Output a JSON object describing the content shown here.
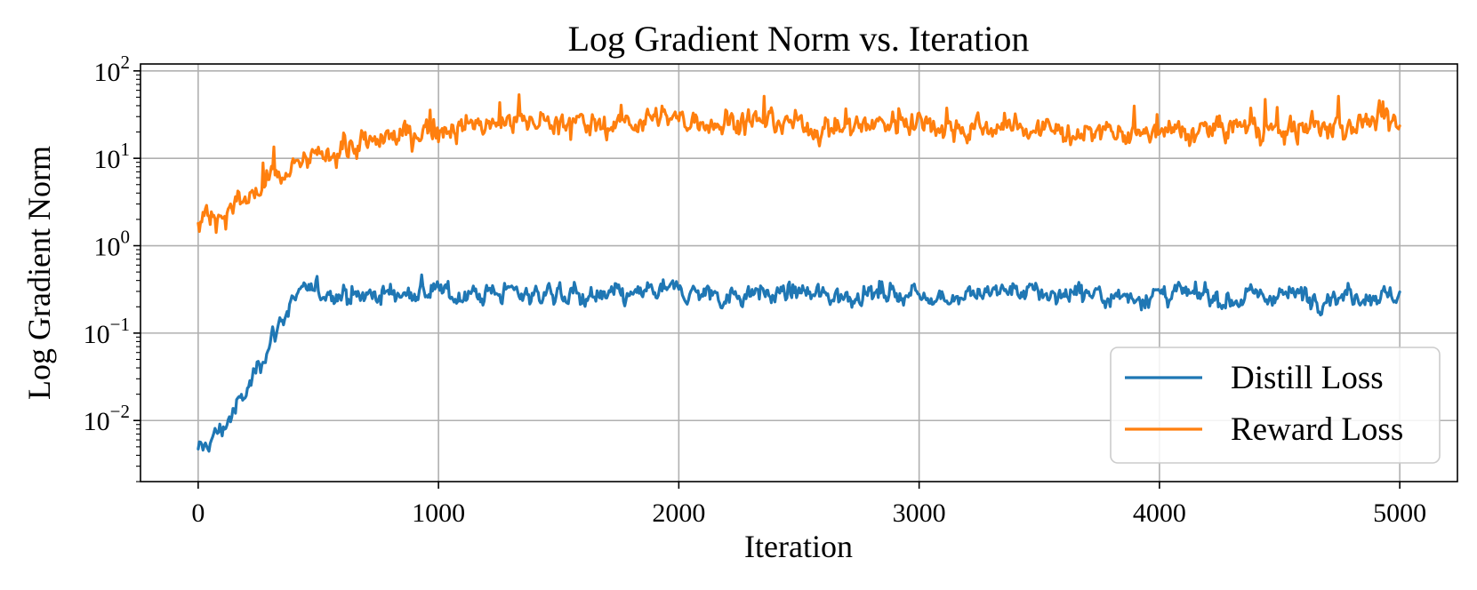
{
  "chart_data": {
    "type": "line",
    "title": "Log Gradient Norm vs. Iteration",
    "xlabel": "Iteration",
    "ylabel": "Log Gradient Norm",
    "xlim": [
      -240,
      5240
    ],
    "ylim": [
      0.002,
      120
    ],
    "yscale": "log",
    "grid": true,
    "legend_position": "lower-right",
    "xticks": [
      {
        "value": 0,
        "label": "0"
      },
      {
        "value": 1000,
        "label": "1000"
      },
      {
        "value": 2000,
        "label": "2000"
      },
      {
        "value": 3000,
        "label": "3000"
      },
      {
        "value": 4000,
        "label": "4000"
      },
      {
        "value": 5000,
        "label": "5000"
      }
    ],
    "yticks": [
      {
        "value": 0.01,
        "base": "10",
        "exp": "−2"
      },
      {
        "value": 0.1,
        "base": "10",
        "exp": "−1"
      },
      {
        "value": 1,
        "base": "10",
        "exp": "0"
      },
      {
        "value": 10,
        "base": "10",
        "exp": "1"
      },
      {
        "value": 100,
        "base": "10",
        "exp": "2"
      }
    ],
    "series": [
      {
        "name": "Distill Loss",
        "color": "#1f77b4",
        "x": [
          0,
          50,
          100,
          150,
          200,
          250,
          300,
          350,
          400,
          450,
          500,
          600,
          700,
          800,
          900,
          1000,
          1100,
          1200,
          1300,
          1400,
          1500,
          1600,
          1700,
          1800,
          1900,
          2000,
          2100,
          2200,
          2300,
          2400,
          2500,
          2600,
          2700,
          2800,
          2900,
          3000,
          3100,
          3200,
          3300,
          3400,
          3500,
          3600,
          3700,
          3800,
          3900,
          4000,
          4100,
          4200,
          4300,
          4400,
          4500,
          4600,
          4700,
          4800,
          4900,
          5000
        ],
        "y": [
          0.004,
          0.006,
          0.008,
          0.013,
          0.02,
          0.045,
          0.08,
          0.15,
          0.24,
          0.3,
          0.29,
          0.29,
          0.27,
          0.28,
          0.29,
          0.29,
          0.27,
          0.28,
          0.3,
          0.28,
          0.29,
          0.26,
          0.25,
          0.27,
          0.29,
          0.3,
          0.28,
          0.27,
          0.29,
          0.28,
          0.28,
          0.26,
          0.27,
          0.29,
          0.28,
          0.28,
          0.26,
          0.27,
          0.29,
          0.3,
          0.28,
          0.27,
          0.29,
          0.27,
          0.26,
          0.28,
          0.27,
          0.26,
          0.24,
          0.26,
          0.27,
          0.27,
          0.26,
          0.28,
          0.27,
          0.28
        ]
      },
      {
        "name": "Reward Loss",
        "color": "#ff7f0e",
        "x": [
          0,
          50,
          100,
          150,
          200,
          250,
          300,
          350,
          400,
          450,
          500,
          600,
          700,
          800,
          900,
          1000,
          1100,
          1200,
          1300,
          1400,
          1500,
          1600,
          1700,
          1800,
          1900,
          2000,
          2100,
          2200,
          2300,
          2400,
          2500,
          2600,
          2700,
          2800,
          2900,
          3000,
          3100,
          3200,
          3300,
          3400,
          3500,
          3600,
          3700,
          3800,
          3900,
          4000,
          4100,
          4200,
          4300,
          4400,
          4500,
          4600,
          4700,
          4800,
          4900,
          5000
        ],
        "y": [
          2.0,
          2.2,
          2.3,
          2.7,
          3.4,
          4.3,
          5.2,
          6.3,
          7.5,
          8.8,
          10.5,
          12.5,
          14.5,
          17,
          20,
          22,
          23,
          24,
          26,
          27,
          26,
          25,
          25,
          27,
          27,
          28,
          27,
          26,
          27,
          27,
          25,
          22,
          23,
          25,
          26,
          28,
          24,
          22,
          22,
          23,
          21,
          20,
          19,
          19,
          18,
          19,
          20,
          21,
          22,
          22,
          21,
          21,
          23,
          26,
          27,
          24
        ]
      }
    ]
  }
}
